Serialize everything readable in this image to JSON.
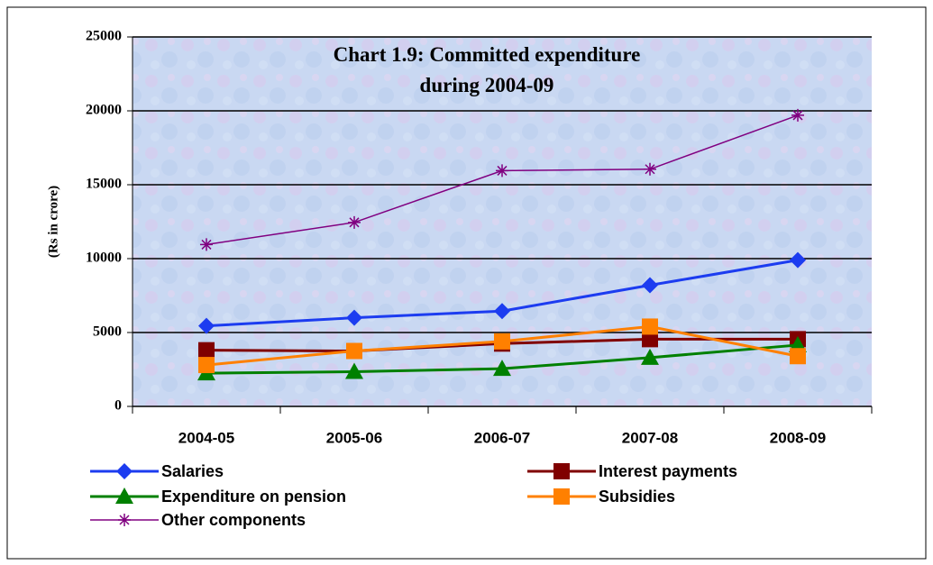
{
  "chart_data": {
    "type": "line",
    "title": "Chart 1.9: Committed expenditure during 2004-09",
    "y_label": "(Rs in crore)",
    "categories": [
      "2004-05",
      "2005-06",
      "2006-07",
      "2007-08",
      "2008-09"
    ],
    "series": [
      {
        "name": "Salaries",
        "color": "#1c3cf0",
        "marker": "diamond",
        "values": [
          5450,
          6000,
          6450,
          8200,
          9900
        ]
      },
      {
        "name": "Interest payments",
        "color": "#800000",
        "marker": "square",
        "values": [
          3800,
          3750,
          4250,
          4550,
          4550
        ]
      },
      {
        "name": "Expenditure on pension",
        "color": "#008000",
        "marker": "triangle",
        "values": [
          2250,
          2350,
          2550,
          3300,
          4150
        ]
      },
      {
        "name": "Subsidies",
        "color": "#ff8000",
        "marker": "square",
        "values": [
          2800,
          3750,
          4400,
          5400,
          3400
        ]
      },
      {
        "name": "Other components",
        "color": "#800080",
        "marker": "star",
        "values": [
          10950,
          12450,
          15950,
          16050,
          19700
        ]
      }
    ],
    "ylim": [
      0,
      25000
    ],
    "yticks": [
      0,
      5000,
      10000,
      15000,
      20000,
      25000
    ],
    "grid": true
  }
}
